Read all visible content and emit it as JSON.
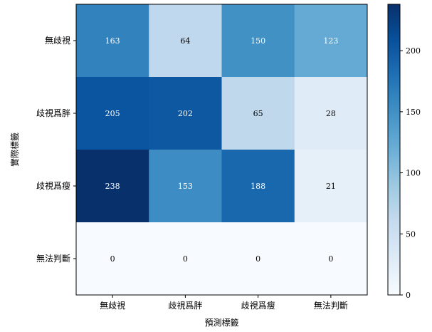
{
  "chart_data": {
    "type": "heatmap",
    "title": "",
    "xlabel": "預測標籤",
    "ylabel": "實際標籤",
    "x_categories": [
      "無歧視",
      "歧視爲胖",
      "歧視爲瘦",
      "無法判斷"
    ],
    "y_categories": [
      "無歧視",
      "歧視爲胖",
      "歧視爲瘦",
      "無法判斷"
    ],
    "values": [
      [
        163,
        64,
        150,
        123
      ],
      [
        205,
        202,
        65,
        28
      ],
      [
        238,
        153,
        188,
        21
      ],
      [
        0,
        0,
        0,
        0
      ]
    ],
    "colormap": "Blues",
    "colorbar": {
      "range": [
        0,
        238
      ],
      "ticks": [
        0,
        50,
        100,
        150,
        200
      ]
    },
    "cell_text_colors": {
      "light": "#ffffff",
      "dark": "#000000"
    }
  }
}
